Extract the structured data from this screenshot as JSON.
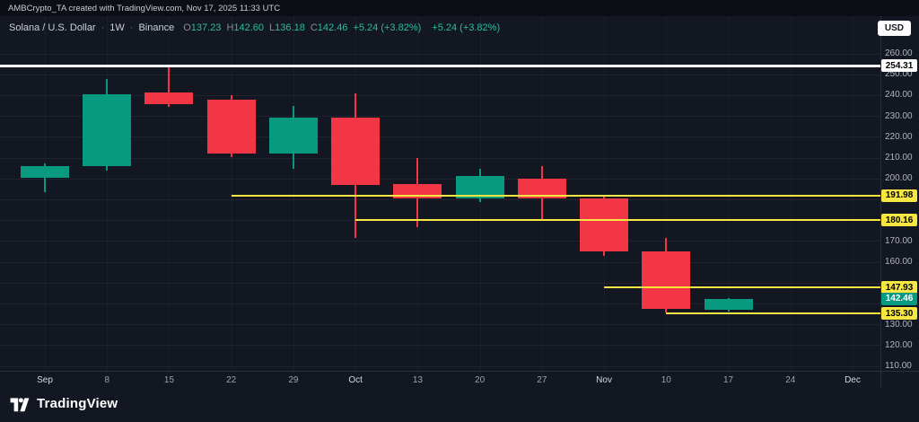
{
  "top_bar": {
    "attribution": "AMBCrypto_TA created with TradingView.com, Nov 17, 2025 11:33 UTC"
  },
  "header": {
    "symbol": "Solana / U.S. Dollar",
    "separator": "·",
    "interval": "1W",
    "exchange": "Binance",
    "ohlc": {
      "o_key": "O",
      "o_val": "137.23",
      "h_key": "H",
      "h_val": "142.60",
      "l_key": "L",
      "l_val": "136.18",
      "c_key": "C",
      "c_val": "142.46",
      "change": "+5.24 (+3.82%)",
      "change_secondary": "+5.24 (+3.82%)"
    },
    "currency_button": "USD"
  },
  "colors": {
    "up": "#089981",
    "down": "#f23645",
    "level_yellow": "#f5e642",
    "level_white": "#ffffff",
    "last_price_bg": "#089981",
    "axis_text": "#b2b5be"
  },
  "chart_data": {
    "type": "candlestick",
    "title": "Solana / U.S. Dollar · 1W · Binance",
    "x_labels": [
      {
        "label": "Sep",
        "major": true
      },
      {
        "label": "8"
      },
      {
        "label": "15"
      },
      {
        "label": "22"
      },
      {
        "label": "29"
      },
      {
        "label": "Oct",
        "major": true
      },
      {
        "label": "13"
      },
      {
        "label": "20"
      },
      {
        "label": "27"
      },
      {
        "label": "Nov",
        "major": true
      },
      {
        "label": "10"
      },
      {
        "label": "17"
      },
      {
        "label": "24"
      },
      {
        "label": "Dec",
        "major": true
      }
    ],
    "candles": [
      {
        "x": "Sep",
        "o": 200.5,
        "h": 207.5,
        "l": 193.5,
        "c": 206.0
      },
      {
        "x": "8",
        "o": 206.0,
        "h": 248.0,
        "l": 204.0,
        "c": 240.5
      },
      {
        "x": "15",
        "o": 241.5,
        "h": 254.5,
        "l": 234.5,
        "c": 236.0
      },
      {
        "x": "22",
        "o": 238.0,
        "h": 240.0,
        "l": 210.5,
        "c": 212.0
      },
      {
        "x": "29",
        "o": 212.0,
        "h": 235.0,
        "l": 205.0,
        "c": 229.5
      },
      {
        "x": "Oct",
        "o": 229.5,
        "h": 241.0,
        "l": 171.5,
        "c": 197.0
      },
      {
        "x": "13",
        "o": 197.5,
        "h": 210.0,
        "l": 177.0,
        "c": 190.5
      },
      {
        "x": "20",
        "o": 190.5,
        "h": 205.0,
        "l": 189.0,
        "c": 201.5
      },
      {
        "x": "27",
        "o": 200.0,
        "h": 206.0,
        "l": 180.0,
        "c": 190.5
      },
      {
        "x": "Nov",
        "o": 190.5,
        "h": 192.0,
        "l": 163.0,
        "c": 165.0
      },
      {
        "x": "10",
        "o": 165.0,
        "h": 171.5,
        "l": 136.0,
        "c": 137.5
      },
      {
        "x": "17",
        "o": 137.23,
        "h": 142.6,
        "l": 136.18,
        "c": 142.46
      }
    ],
    "y_axis": {
      "min": 110,
      "max": 260,
      "tick_step": 10,
      "visible_ticks": [
        260,
        250,
        240,
        230,
        220,
        210,
        200,
        170,
        160,
        140,
        130,
        120,
        110
      ]
    },
    "levels": [
      {
        "price": 254.31,
        "label": "254.31",
        "style": "white",
        "full_width": true
      },
      {
        "price": 191.98,
        "label": "191.98",
        "style": "yellow",
        "start_index": 3
      },
      {
        "price": 180.16,
        "label": "180.16",
        "style": "yellow",
        "start_index": 5
      },
      {
        "price": 147.93,
        "label": "147.93",
        "style": "yellow",
        "start_index": 9
      },
      {
        "price": 135.3,
        "label": "135.30",
        "style": "yellow",
        "start_index": 10
      }
    ],
    "last_price": {
      "value": 142.46,
      "label": "142.46"
    }
  },
  "footer": {
    "logo_text": "TradingView"
  }
}
